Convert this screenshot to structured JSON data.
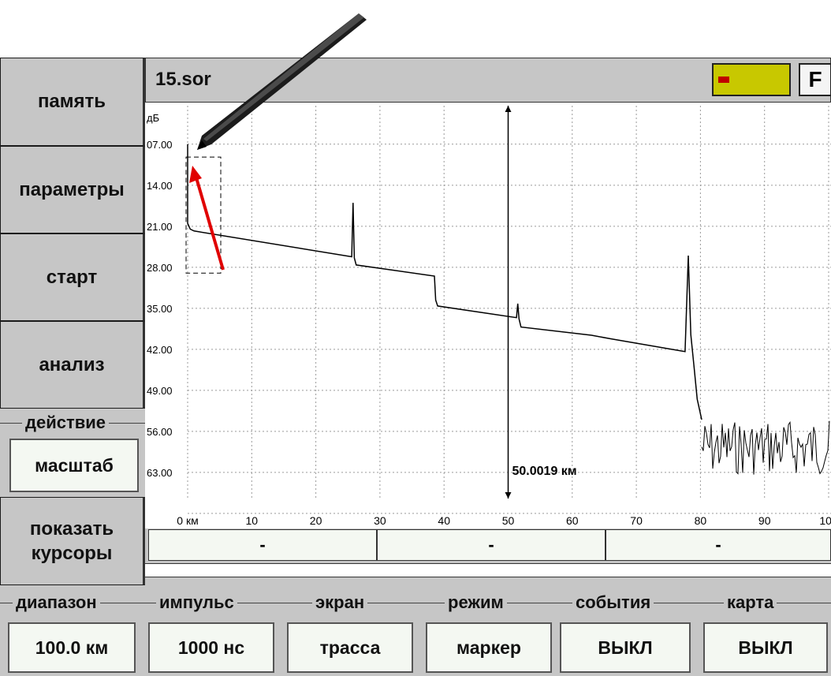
{
  "file": {
    "name": "15.sor",
    "f_button": "F"
  },
  "sidebar": {
    "memory": "память",
    "parameters": "параметры",
    "start": "старт",
    "analysis": "анализ",
    "action_label": "действие",
    "action_value": "масштаб",
    "show_cursors_line1": "показать",
    "show_cursors_line2": "курсоры"
  },
  "cursor_readouts": [
    "-",
    "-",
    "-"
  ],
  "bottom_groups": [
    {
      "label": "диапазон",
      "value": "100.0 км"
    },
    {
      "label": "импульс",
      "value": "1000 нс"
    },
    {
      "label": "экран",
      "value": "трасса"
    },
    {
      "label": "режим",
      "value": "маркер"
    },
    {
      "label": "события",
      "value": "ВЫКЛ"
    },
    {
      "label": "карта",
      "value": "ВЫКЛ"
    }
  ],
  "chart_data": {
    "type": "line",
    "title": "",
    "xlabel": "",
    "ylabel": "дБ",
    "y_ticks": [
      "07.00",
      "14.00",
      "21.00",
      "28.00",
      "35.00",
      "42.00",
      "49.00",
      "56.00",
      "63.00"
    ],
    "x_ticks": [
      "0 км",
      "10",
      "20",
      "30",
      "40",
      "50",
      "60",
      "70",
      "80",
      "90",
      "100"
    ],
    "xlim": [
      0,
      100
    ],
    "ylim": [
      0,
      70
    ],
    "y_inverted": true,
    "grid": true,
    "marker": {
      "x": 50.0019,
      "label": "50.0019 км"
    },
    "series": [
      {
        "points": [
          [
            0,
            7.0
          ],
          [
            0,
            20.5
          ],
          [
            0.4,
            21.5
          ],
          [
            1,
            21.8
          ],
          [
            25.6,
            26.2
          ],
          [
            25.8,
            17.0
          ],
          [
            26.0,
            26.4
          ],
          [
            26.3,
            27.6
          ],
          [
            38.5,
            29.5
          ],
          [
            38.7,
            33.6
          ],
          [
            39.0,
            34.6
          ],
          [
            51.3,
            36.6
          ],
          [
            51.5,
            34.2
          ],
          [
            51.7,
            36.8
          ],
          [
            52.0,
            38.2
          ],
          [
            63,
            39.6
          ],
          [
            66,
            40.2
          ],
          [
            77.6,
            42.4
          ],
          [
            78.1,
            26.0
          ],
          [
            78.5,
            39.5
          ],
          [
            79.0,
            45.0
          ],
          [
            79.5,
            50.5
          ],
          [
            80.2,
            54.0
          ]
        ]
      }
    ],
    "noise": {
      "x_start": 80.2,
      "x_end": 100,
      "y_min": 54.0,
      "y_max": 63.5
    }
  },
  "colors": {
    "panel_gray": "#c6c6c6",
    "value_box": "#f4f8f2",
    "trace": "#000000",
    "grid": "#9a9a9a",
    "indicator": "#c8c800",
    "annotation_arrow": "#e00000"
  }
}
